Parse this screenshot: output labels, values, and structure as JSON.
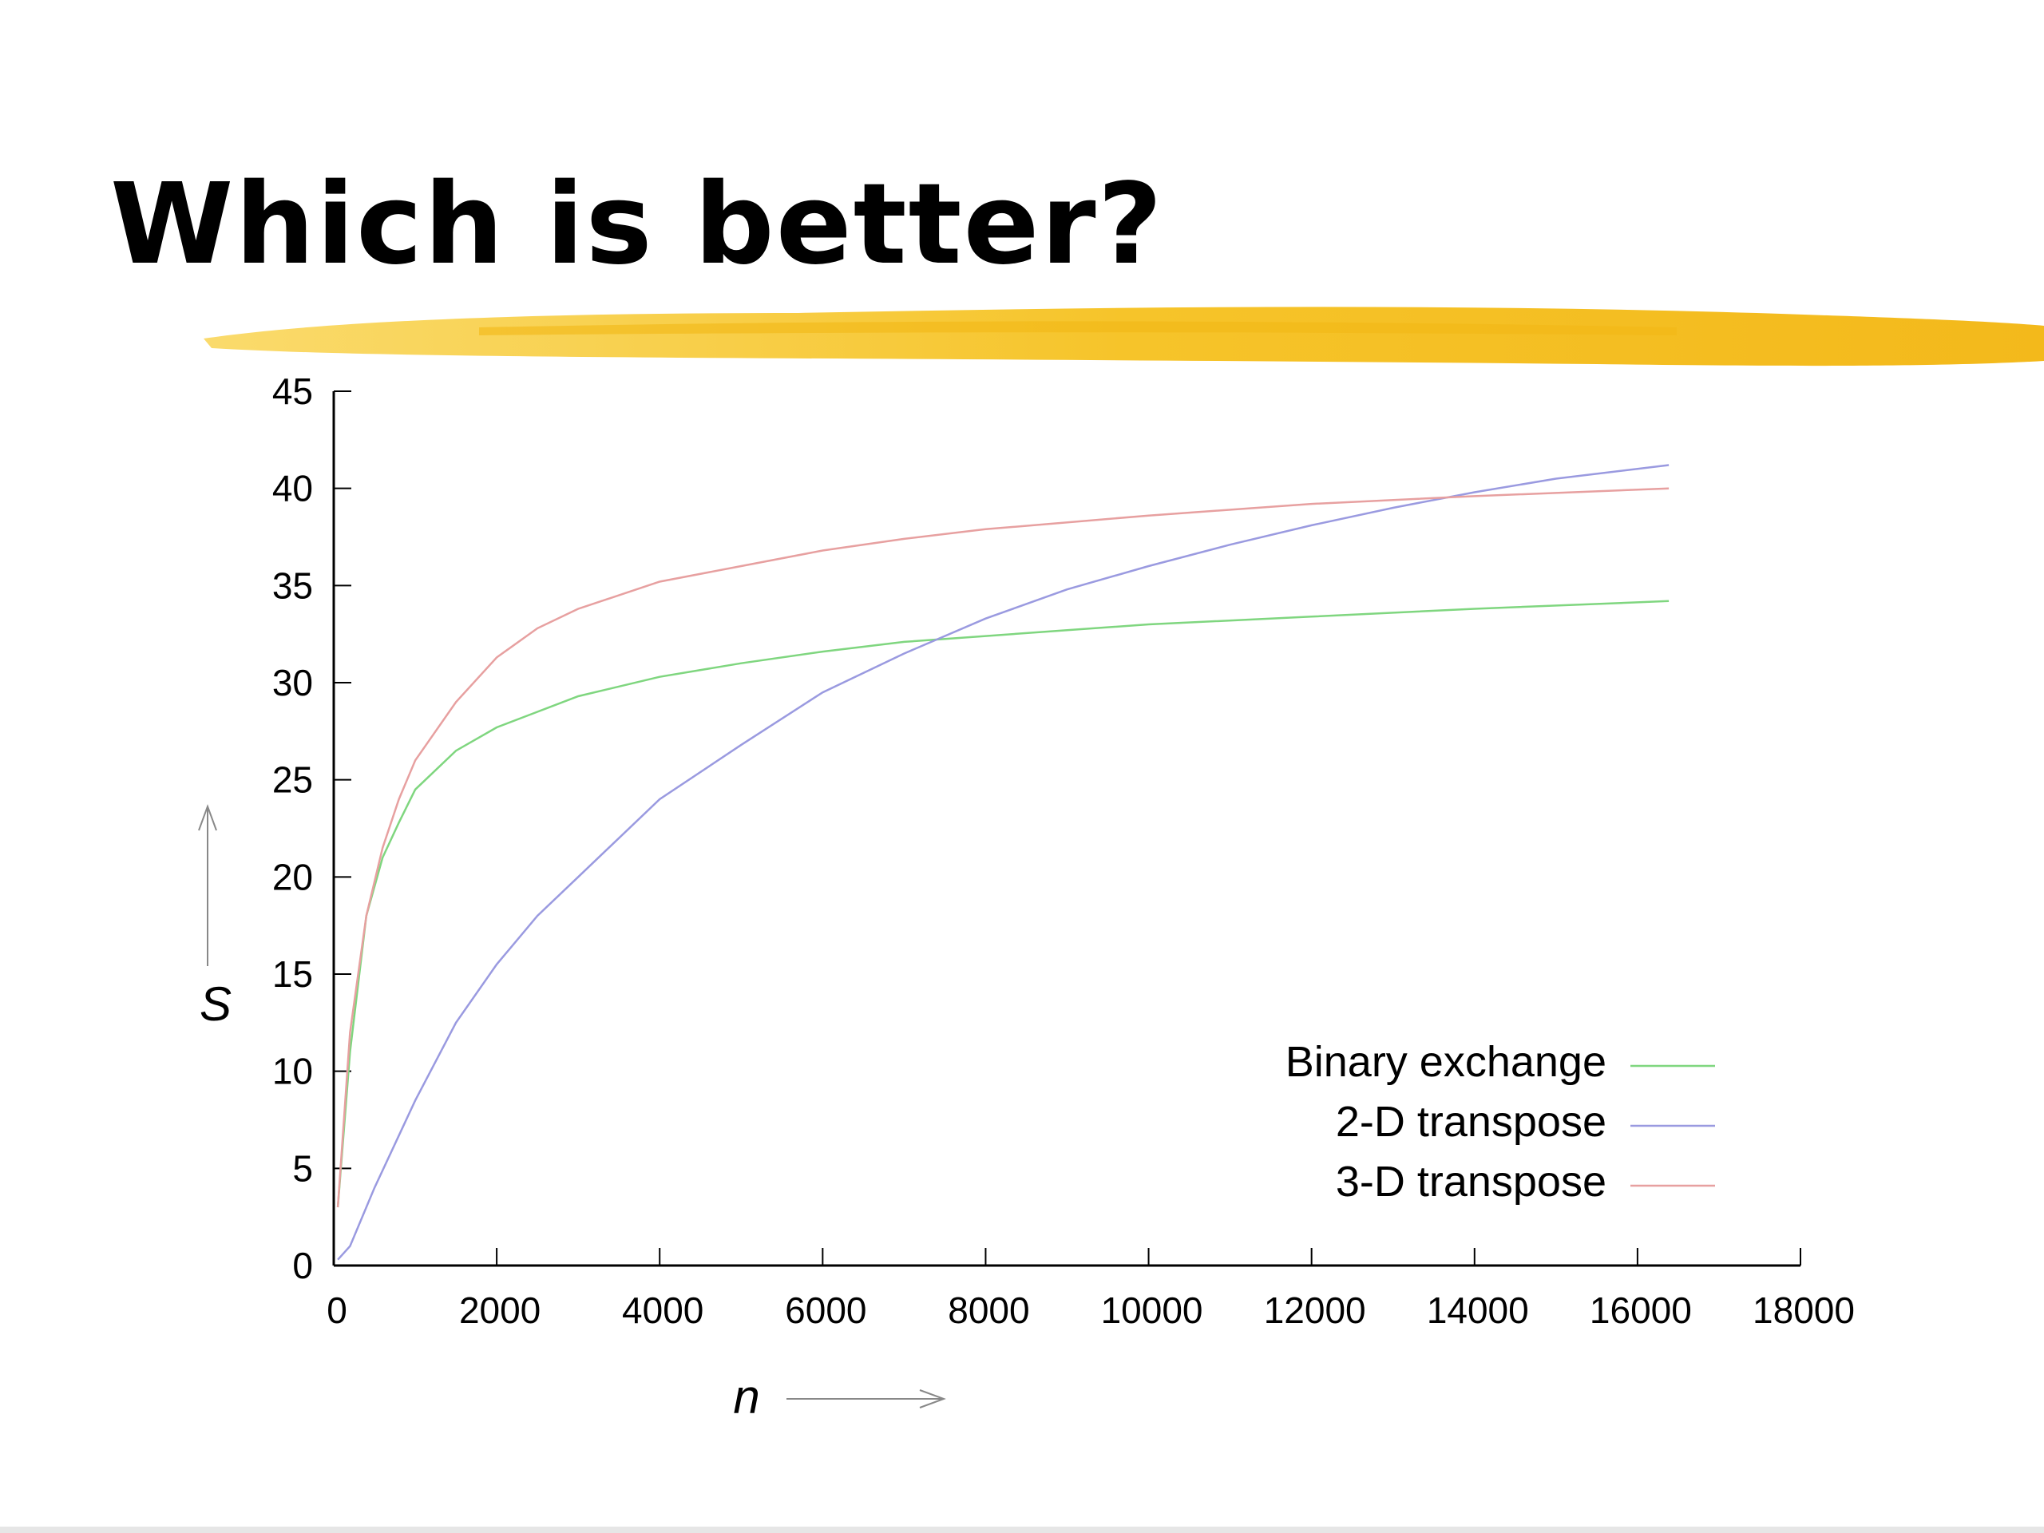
{
  "slide": {
    "title": "Which is better?"
  },
  "colors": {
    "highlight": "#f5c022",
    "axis": "#000000",
    "arrow": "#888888"
  },
  "chart_data": {
    "type": "line",
    "title": "",
    "xlabel": "n",
    "ylabel": "S",
    "xlim": [
      0,
      18000
    ],
    "ylim": [
      0,
      45
    ],
    "xticks": [
      0,
      2000,
      4000,
      6000,
      8000,
      10000,
      12000,
      14000,
      16000,
      18000
    ],
    "yticks": [
      0,
      5,
      10,
      15,
      20,
      25,
      30,
      35,
      40,
      45
    ],
    "grid": false,
    "legend_position": "bottom-right",
    "series": [
      {
        "name": "Binary exchange",
        "color": "#7fd67f",
        "x": [
          50,
          200,
          400,
          600,
          800,
          1000,
          1500,
          2000,
          2500,
          3000,
          4000,
          5000,
          6000,
          7000,
          8000,
          9000,
          10000,
          12000,
          14000,
          16384
        ],
        "y": [
          3,
          11,
          18,
          21,
          22.8,
          24.5,
          26.5,
          27.7,
          28.5,
          29.3,
          30.3,
          31,
          31.6,
          32.1,
          32.4,
          32.7,
          33,
          33.4,
          33.8,
          34.2
        ]
      },
      {
        "name": "2-D transpose",
        "color": "#9a9ae0",
        "x": [
          50,
          200,
          500,
          1000,
          1500,
          2000,
          2500,
          3000,
          4000,
          5000,
          6000,
          7000,
          8000,
          9000,
          10000,
          11000,
          12000,
          13000,
          14000,
          15000,
          16384
        ],
        "y": [
          0.3,
          1,
          4,
          8.5,
          12.5,
          15.5,
          18,
          20,
          24,
          26.8,
          29.5,
          31.5,
          33.3,
          34.8,
          36,
          37.1,
          38.1,
          39,
          39.8,
          40.5,
          41.2
        ]
      },
      {
        "name": "3-D transpose",
        "color": "#e7a0a0",
        "x": [
          50,
          200,
          400,
          600,
          800,
          1000,
          1500,
          2000,
          2500,
          3000,
          4000,
          5000,
          6000,
          7000,
          8000,
          10000,
          12000,
          14000,
          16384
        ],
        "y": [
          3,
          12,
          18,
          21.5,
          24,
          26,
          29,
          31.3,
          32.8,
          33.8,
          35.2,
          36,
          36.8,
          37.4,
          37.9,
          38.6,
          39.2,
          39.6,
          40
        ]
      }
    ]
  }
}
